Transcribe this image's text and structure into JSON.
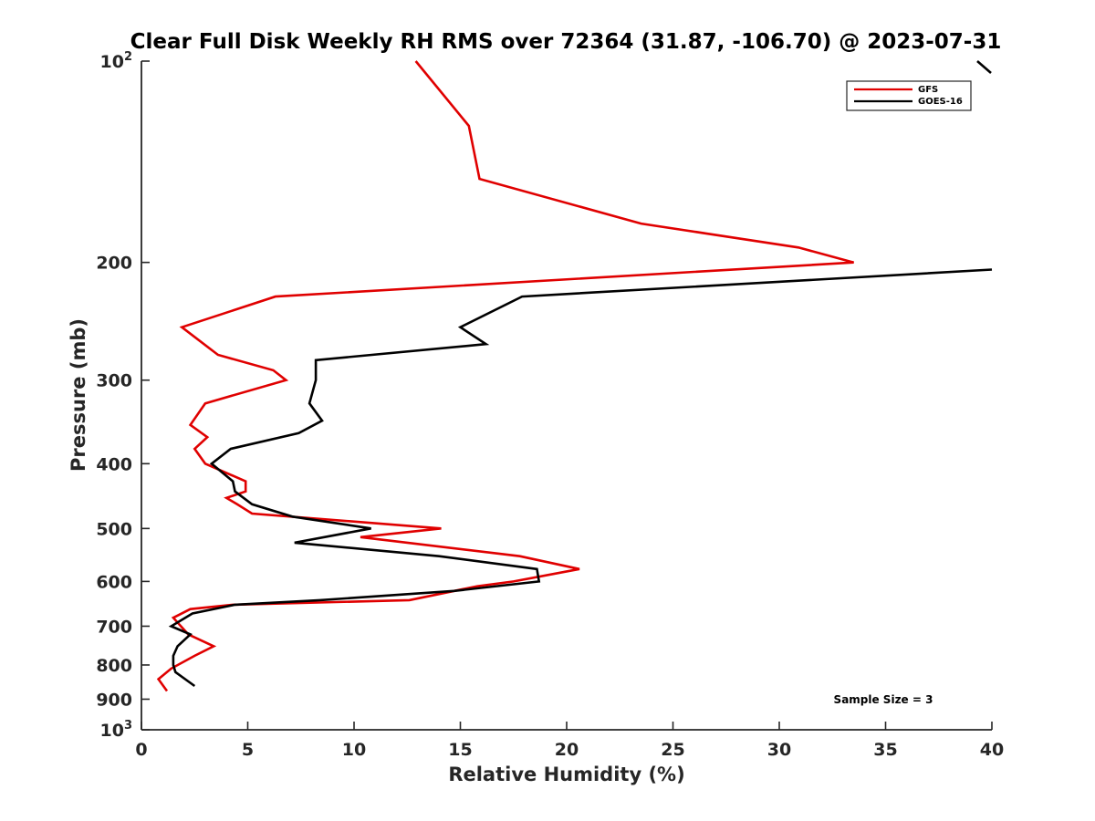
{
  "chart_data": {
    "type": "line",
    "title": "Clear Full Disk Weekly RH RMS over 72364 (31.87, -106.70) @ 2023-07-31",
    "xlabel": "Relative Humidity (%)",
    "ylabel": "Pressure (mb)",
    "xlim": [
      0,
      40
    ],
    "ylim": [
      100,
      1000
    ],
    "y_scale": "log",
    "y_reversed": true,
    "grid": false,
    "x_ticks": [
      "0",
      "5",
      "10",
      "15",
      "20",
      "25",
      "30",
      "35",
      "40"
    ],
    "y_ticks": [
      {
        "value": 100,
        "base": "10",
        "exp": "2"
      },
      {
        "value": 200,
        "label": "200"
      },
      {
        "value": 300,
        "label": "300"
      },
      {
        "value": 400,
        "label": "400"
      },
      {
        "value": 500,
        "label": "500"
      },
      {
        "value": 600,
        "label": "600"
      },
      {
        "value": 700,
        "label": "700"
      },
      {
        "value": 800,
        "label": "800"
      },
      {
        "value": 900,
        "label": "900"
      },
      {
        "value": 1000,
        "base": "10",
        "exp": "3"
      }
    ],
    "legend": {
      "placement": "top-right"
    },
    "annotation": "Sample Size = 3",
    "series": [
      {
        "name": "GFS",
        "color": "#e00000",
        "points": [
          [
            12.9,
            100
          ],
          [
            15.4,
            125
          ],
          [
            15.9,
            150
          ],
          [
            23.5,
            175
          ],
          [
            30.9,
            190
          ],
          [
            33.5,
            200
          ],
          [
            6.3,
            225
          ],
          [
            1.9,
            250
          ],
          [
            3.6,
            275
          ],
          [
            6.2,
            290
          ],
          [
            6.8,
            300
          ],
          [
            3.0,
            325
          ],
          [
            2.3,
            350
          ],
          [
            3.1,
            365
          ],
          [
            2.5,
            380
          ],
          [
            3.0,
            400
          ],
          [
            4.9,
            425
          ],
          [
            4.9,
            440
          ],
          [
            4.0,
            450
          ],
          [
            4.5,
            460
          ],
          [
            5.2,
            475
          ],
          [
            14.1,
            500
          ],
          [
            10.3,
            515
          ],
          [
            17.8,
            550
          ],
          [
            20.6,
            575
          ],
          [
            17.5,
            600
          ],
          [
            15.8,
            610
          ],
          [
            12.6,
            640
          ],
          [
            4.3,
            650
          ],
          [
            2.3,
            660
          ],
          [
            1.5,
            680
          ],
          [
            2.2,
            720
          ],
          [
            3.4,
            750
          ],
          [
            2.5,
            775
          ],
          [
            1.4,
            810
          ],
          [
            0.8,
            840
          ],
          [
            1.2,
            875
          ]
        ]
      },
      {
        "name": "GOES-16",
        "color": "#000000",
        "points": [
          [
            40.0,
            205
          ],
          [
            17.9,
            225
          ],
          [
            15.0,
            250
          ],
          [
            16.2,
            265
          ],
          [
            8.2,
            280
          ],
          [
            8.2,
            300
          ],
          [
            7.9,
            325
          ],
          [
            8.5,
            345
          ],
          [
            7.4,
            360
          ],
          [
            4.2,
            380
          ],
          [
            3.3,
            400
          ],
          [
            4.3,
            425
          ],
          [
            4.4,
            440
          ],
          [
            5.2,
            460
          ],
          [
            7.1,
            480
          ],
          [
            10.8,
            500
          ],
          [
            7.2,
            525
          ],
          [
            14.0,
            550
          ],
          [
            18.6,
            575
          ],
          [
            18.7,
            600
          ],
          [
            14.7,
            620
          ],
          [
            8.4,
            640
          ],
          [
            4.4,
            650
          ],
          [
            2.4,
            670
          ],
          [
            1.4,
            700
          ],
          [
            2.3,
            720
          ],
          [
            1.7,
            750
          ],
          [
            1.5,
            775
          ],
          [
            1.5,
            800
          ],
          [
            1.6,
            820
          ],
          [
            2.5,
            860
          ]
        ]
      }
    ]
  }
}
